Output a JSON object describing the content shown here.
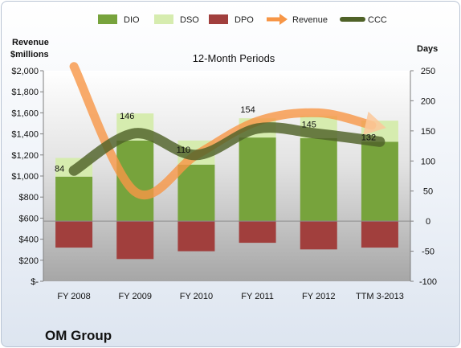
{
  "chart_data": {
    "type": "bar",
    "subtitle": "12-Month Periods",
    "company": "OM Group",
    "left_axis_title": [
      "Revenue",
      "$millions"
    ],
    "right_axis_title": "Days",
    "categories": [
      "FY 2008",
      "FY 2009",
      "FY 2010",
      "FY 2011",
      "FY 2012",
      "TTM 3-2013"
    ],
    "left_axis": {
      "ylim": [
        0,
        2000
      ],
      "ticks": [
        0,
        200,
        400,
        600,
        800,
        1000,
        1200,
        1400,
        1600,
        1800,
        2000
      ],
      "tick_labels": [
        "$-",
        "$200",
        "$400",
        "$600",
        "$800",
        "$1,000",
        "$1,200",
        "$1,400",
        "$1,600",
        "$1,800",
        "$2,000"
      ]
    },
    "right_axis": {
      "ylim": [
        -100,
        250
      ],
      "ticks": [
        -100,
        -50,
        0,
        50,
        100,
        150,
        200,
        250
      ],
      "tick_labels": [
        "-100",
        "-50",
        "0",
        "50",
        "100",
        "150",
        "200",
        "250"
      ]
    },
    "grid": false,
    "legend_position": "top",
    "series": [
      {
        "name": "DIO",
        "type": "bar",
        "axis": "right",
        "color": "#77a33c",
        "values": [
          74,
          134,
          94,
          139,
          138,
          132
        ]
      },
      {
        "name": "DSO",
        "type": "bar",
        "axis": "right",
        "color": "#d6ecaf",
        "values": [
          31,
          45,
          40,
          32,
          37,
          35
        ]
      },
      {
        "name": "DPO",
        "type": "bar",
        "axis": "right",
        "color": "#a13f3d",
        "values": [
          -44,
          -63,
          -50,
          -36,
          -47,
          -44
        ]
      },
      {
        "name": "Revenue",
        "type": "line",
        "axis": "left",
        "color": "#f79646",
        "values": [
          2040,
          850,
          1200,
          1520,
          1600,
          1470
        ]
      },
      {
        "name": "CCC",
        "type": "line",
        "axis": "right",
        "color": "#4f6228",
        "values": [
          84,
          146,
          110,
          154,
          145,
          132
        ]
      }
    ],
    "ccc_labels": [
      "84",
      "146",
      "110",
      "154",
      "145",
      "132"
    ]
  }
}
